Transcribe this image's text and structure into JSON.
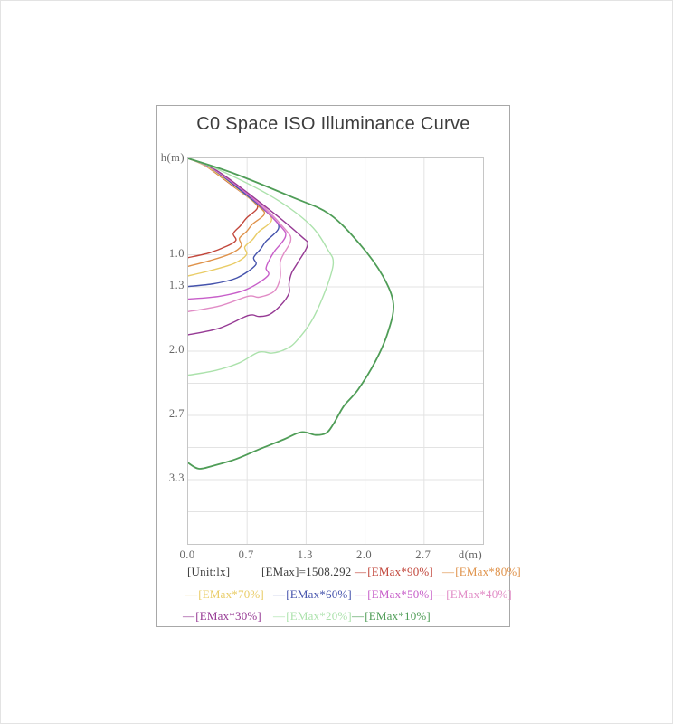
{
  "chart_data": {
    "type": "line",
    "title": "C0 Space ISO Illuminance Curve",
    "xlabel": "d(m)",
    "ylabel": "h(m)",
    "x_range": [
      0,
      3.33
    ],
    "y_range": [
      0,
      4.02
    ],
    "y_inverted": true,
    "grid": true,
    "unit_label": "[Unit:lx]",
    "emax_label": "[EMax]=1508.292",
    "emax_value": 1508.292,
    "x_ticks": [
      {
        "v": 0.0,
        "label": "0.0",
        "grid": false
      },
      {
        "v": 0.667,
        "label": "0.7",
        "grid": true
      },
      {
        "v": 1.333,
        "label": "1.3",
        "grid": true
      },
      {
        "v": 2.0,
        "label": "2.0",
        "grid": true
      },
      {
        "v": 2.667,
        "label": "2.7",
        "grid": true
      }
    ],
    "y_ticks": [
      {
        "v": 1.0,
        "label": "1.0",
        "grid": true
      },
      {
        "v": 1.333,
        "label": "1.3",
        "grid": true
      },
      {
        "v": 1.667,
        "label": "",
        "grid": true
      },
      {
        "v": 2.0,
        "label": "2.0",
        "grid": true
      },
      {
        "v": 2.333,
        "label": "",
        "grid": true
      },
      {
        "v": 2.667,
        "label": "2.7",
        "grid": true
      },
      {
        "v": 3.0,
        "label": "",
        "grid": true
      },
      {
        "v": 3.333,
        "label": "3.3",
        "grid": true
      },
      {
        "v": 3.667,
        "label": "",
        "grid": true
      }
    ],
    "series": [
      {
        "name": "[EMax*90%]",
        "percent": 90,
        "color": "#c2473c",
        "width": 1.4,
        "points": [
          [
            0,
            0
          ],
          [
            0.2,
            0.08
          ],
          [
            0.54,
            0.31
          ],
          [
            0.74,
            0.45
          ],
          [
            0.78,
            0.52
          ],
          [
            0.66,
            0.62
          ],
          [
            0.59,
            0.7
          ],
          [
            0.51,
            0.78
          ],
          [
            0.54,
            0.85
          ],
          [
            0.44,
            0.91
          ],
          [
            0.24,
            0.98
          ],
          [
            0,
            1.03
          ]
        ]
      },
      {
        "name": "[EMax*80%]",
        "percent": 80,
        "color": "#df924a",
        "width": 1.4,
        "points": [
          [
            0,
            0
          ],
          [
            0.22,
            0.09
          ],
          [
            0.58,
            0.33
          ],
          [
            0.8,
            0.5
          ],
          [
            0.86,
            0.58
          ],
          [
            0.73,
            0.68
          ],
          [
            0.66,
            0.76
          ],
          [
            0.58,
            0.83
          ],
          [
            0.6,
            0.91
          ],
          [
            0.48,
            0.99
          ],
          [
            0.25,
            1.06
          ],
          [
            0,
            1.12
          ]
        ]
      },
      {
        "name": "[EMax*70%]",
        "percent": 70,
        "color": "#e9cc66",
        "width": 1.4,
        "points": [
          [
            0,
            0
          ],
          [
            0.24,
            0.1
          ],
          [
            0.62,
            0.36
          ],
          [
            0.88,
            0.55
          ],
          [
            0.94,
            0.65
          ],
          [
            0.8,
            0.76
          ],
          [
            0.73,
            0.84
          ],
          [
            0.64,
            0.92
          ],
          [
            0.66,
            1.0
          ],
          [
            0.52,
            1.09
          ],
          [
            0.27,
            1.16
          ],
          [
            0,
            1.22
          ]
        ]
      },
      {
        "name": "[EMax*60%]",
        "percent": 60,
        "color": "#4553ac",
        "width": 1.4,
        "points": [
          [
            0,
            0
          ],
          [
            0.26,
            0.1
          ],
          [
            0.66,
            0.38
          ],
          [
            0.96,
            0.62
          ],
          [
            1.02,
            0.73
          ],
          [
            0.88,
            0.86
          ],
          [
            0.82,
            0.94
          ],
          [
            0.74,
            1.03
          ],
          [
            0.76,
            1.11
          ],
          [
            0.55,
            1.24
          ],
          [
            0.29,
            1.3
          ],
          [
            0,
            1.33
          ]
        ]
      },
      {
        "name": "[EMax*50%]",
        "percent": 50,
        "color": "#c75ec9",
        "width": 1.4,
        "points": [
          [
            0,
            0
          ],
          [
            0.28,
            0.11
          ],
          [
            0.72,
            0.41
          ],
          [
            1.04,
            0.7
          ],
          [
            1.1,
            0.81
          ],
          [
            0.98,
            0.96
          ],
          [
            0.92,
            1.05
          ],
          [
            0.88,
            1.14
          ],
          [
            0.9,
            1.22
          ],
          [
            0.66,
            1.36
          ],
          [
            0.36,
            1.43
          ],
          [
            0,
            1.46
          ]
        ]
      },
      {
        "name": "[EMax*40%]",
        "percent": 40,
        "color": "#e18cc6",
        "width": 1.4,
        "points": [
          [
            0,
            0
          ],
          [
            0.3,
            0.12
          ],
          [
            0.78,
            0.44
          ],
          [
            1.1,
            0.74
          ],
          [
            1.16,
            0.85
          ],
          [
            1.08,
            0.99
          ],
          [
            1.04,
            1.08
          ],
          [
            1.04,
            1.24
          ],
          [
            0.97,
            1.38
          ],
          [
            0.8,
            1.44
          ],
          [
            0.68,
            1.43
          ],
          [
            0.36,
            1.53
          ],
          [
            0,
            1.59
          ]
        ]
      },
      {
        "name": "[EMax*30%]",
        "percent": 30,
        "color": "#963a94",
        "width": 1.4,
        "points": [
          [
            0,
            0
          ],
          [
            0.33,
            0.13
          ],
          [
            0.86,
            0.49
          ],
          [
            1.28,
            0.81
          ],
          [
            1.35,
            0.9
          ],
          [
            1.24,
            1.08
          ],
          [
            1.17,
            1.19
          ],
          [
            1.14,
            1.3
          ],
          [
            1.14,
            1.4
          ],
          [
            1.05,
            1.52
          ],
          [
            0.92,
            1.62
          ],
          [
            0.8,
            1.64
          ],
          [
            0.68,
            1.63
          ],
          [
            0.36,
            1.76
          ],
          [
            0,
            1.83
          ]
        ]
      },
      {
        "name": "[EMax*20%]",
        "percent": 20,
        "color": "#ace2ac",
        "width": 1.4,
        "points": [
          [
            0,
            0
          ],
          [
            0.4,
            0.14
          ],
          [
            0.97,
            0.41
          ],
          [
            1.38,
            0.69
          ],
          [
            1.58,
            0.95
          ],
          [
            1.64,
            1.09
          ],
          [
            1.56,
            1.35
          ],
          [
            1.4,
            1.68
          ],
          [
            1.22,
            1.9
          ],
          [
            1.1,
            1.98
          ],
          [
            0.95,
            2.02
          ],
          [
            0.8,
            2.01
          ],
          [
            0.58,
            2.12
          ],
          [
            0.31,
            2.2
          ],
          [
            0,
            2.25
          ]
        ]
      },
      {
        "name": "[EMax*10%]",
        "percent": 10,
        "color": "#4f9d57",
        "width": 1.8,
        "points": [
          [
            0,
            0
          ],
          [
            0.5,
            0.15
          ],
          [
            1.17,
            0.4
          ],
          [
            1.6,
            0.58
          ],
          [
            1.95,
            0.9
          ],
          [
            2.2,
            1.22
          ],
          [
            2.32,
            1.51
          ],
          [
            2.26,
            1.8
          ],
          [
            2.12,
            2.1
          ],
          [
            1.92,
            2.4
          ],
          [
            1.76,
            2.57
          ],
          [
            1.64,
            2.76
          ],
          [
            1.56,
            2.85
          ],
          [
            1.44,
            2.87
          ],
          [
            1.28,
            2.84
          ],
          [
            1.07,
            2.92
          ],
          [
            0.8,
            3.02
          ],
          [
            0.54,
            3.12
          ],
          [
            0.28,
            3.19
          ],
          [
            0.12,
            3.22
          ],
          [
            0,
            3.16
          ]
        ]
      }
    ]
  },
  "legend": {
    "rows": [
      [
        {
          "text": "[Unit:lx]",
          "color": "#3f3f3f",
          "dash": false
        },
        {
          "text": "[EMax]=1508.292",
          "color": "#3f3f3f",
          "dash": false
        },
        {
          "text": "[EMax*90%]",
          "color": "#c2473c",
          "dash": true
        },
        {
          "text": "[EMax*80%]",
          "color": "#df924a",
          "dash": true
        }
      ],
      [
        {
          "text": "[EMax*70%]",
          "color": "#e9cc66",
          "dash": true
        },
        {
          "text": "[EMax*60%]",
          "color": "#4553ac",
          "dash": true
        },
        {
          "text": "[EMax*50%]",
          "color": "#c75ec9",
          "dash": true
        },
        {
          "text": "[EMax*40%]",
          "color": "#e18cc6",
          "dash": true
        }
      ],
      [
        {
          "text": "[EMax*30%]",
          "color": "#963a94",
          "dash": true
        },
        {
          "text": "[EMax*20%]",
          "color": "#ace2ac",
          "dash": true
        },
        {
          "text": "[EMax*10%]",
          "color": "#4f9d57",
          "dash": true
        }
      ]
    ]
  }
}
